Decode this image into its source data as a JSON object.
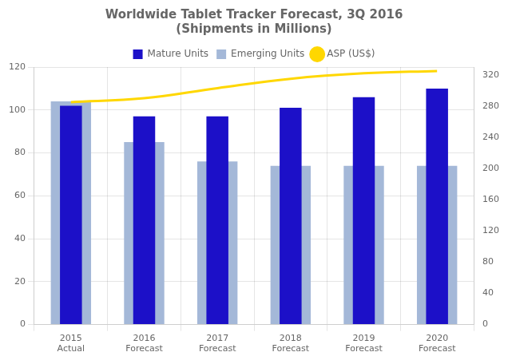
{
  "chart_data": {
    "type": "bar",
    "title": "Worldwide Tablet Tracker Forecast, 3Q 2016",
    "subtitle": "(Shipments in Millions)",
    "categories": [
      "2015\nActual",
      "2016\nForecast",
      "2017\nForecast",
      "2018\nForecast",
      "2019\nForecast",
      "2020\nForecast"
    ],
    "series": [
      {
        "name": "Mature Units",
        "color": "#1C10C8",
        "values": [
          102,
          97,
          97,
          101,
          106,
          110
        ]
      },
      {
        "name": "Emerging Units",
        "color": "#A4B8D8",
        "values": [
          104,
          85,
          76,
          74,
          74,
          74
        ]
      },
      {
        "name": "ASP (US$)",
        "color": "#FFD700",
        "type": "line",
        "axis": "y2",
        "values": [
          285,
          290,
          303,
          315,
          322,
          325
        ]
      }
    ],
    "ylim": [
      0,
      120
    ],
    "yticks": [
      0,
      20,
      40,
      60,
      80,
      100,
      120
    ],
    "y2lim": [
      0,
      330
    ],
    "y2ticks": [
      0,
      40,
      80,
      120,
      160,
      200,
      240,
      280,
      320
    ],
    "grid": true,
    "legend": "top"
  }
}
